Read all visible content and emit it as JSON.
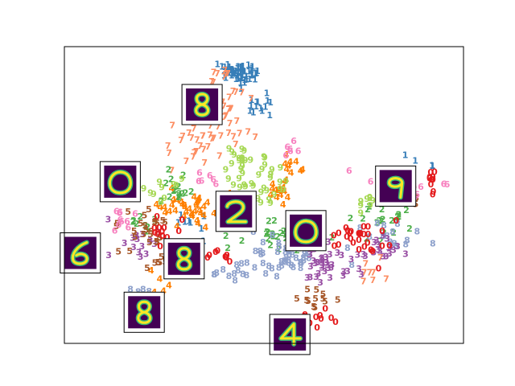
{
  "chart_data": {
    "type": "scatter",
    "title": "",
    "xlabel": "",
    "ylabel": "",
    "xlim": [
      0,
      100
    ],
    "ylim": [
      0,
      100
    ],
    "grid": false,
    "legend": "none",
    "ticks": "none",
    "marker": "digit class label drawn as text",
    "class_colors": {
      "0": "#e41a1c",
      "1": "#377eb8",
      "2": "#4daf4a",
      "3": "#984ea3",
      "4": "#ff7f00",
      "5": "#a65628",
      "6": "#f781bf",
      "7": "#fc8d62",
      "8": "#8da0cb",
      "9": "#a6d854"
    },
    "clusters": [
      {
        "label": "1",
        "count": 60,
        "center": [
          43,
          91
        ],
        "spread": [
          4,
          3
        ]
      },
      {
        "label": "1",
        "count": 14,
        "center": [
          49,
          80
        ],
        "spread": [
          3,
          4
        ]
      },
      {
        "label": "1",
        "count": 8,
        "center": [
          32,
          41
        ],
        "spread": [
          5,
          3
        ]
      },
      {
        "label": "1",
        "count": 6,
        "center": [
          89,
          60
        ],
        "spread": [
          3,
          4
        ]
      },
      {
        "label": "7",
        "count": 35,
        "center": [
          39,
          76
        ],
        "spread": [
          5,
          8
        ]
      },
      {
        "label": "7",
        "count": 22,
        "center": [
          32,
          66
        ],
        "spread": [
          6,
          7
        ]
      },
      {
        "label": "7",
        "count": 10,
        "center": [
          40,
          88
        ],
        "spread": [
          6,
          4
        ]
      },
      {
        "label": "7",
        "count": 8,
        "center": [
          77,
          24
        ],
        "spread": [
          4,
          5
        ]
      },
      {
        "label": "4",
        "count": 40,
        "center": [
          32,
          46
        ],
        "spread": [
          8,
          4
        ]
      },
      {
        "label": "4",
        "count": 15,
        "center": [
          54,
          51
        ],
        "spread": [
          3,
          4
        ]
      },
      {
        "label": "4",
        "count": 10,
        "center": [
          58,
          59
        ],
        "spread": [
          3,
          3
        ]
      },
      {
        "label": "4",
        "count": 6,
        "center": [
          24,
          22
        ],
        "spread": [
          3,
          4
        ]
      },
      {
        "label": "2",
        "count": 35,
        "center": [
          55,
          38
        ],
        "spread": [
          8,
          7
        ]
      },
      {
        "label": "2",
        "count": 20,
        "center": [
          79,
          42
        ],
        "spread": [
          6,
          5
        ]
      },
      {
        "label": "2",
        "count": 15,
        "center": [
          27,
          52
        ],
        "spread": [
          5,
          4
        ]
      },
      {
        "label": "2",
        "count": 8,
        "center": [
          20,
          40
        ],
        "spread": [
          3,
          4
        ]
      },
      {
        "label": "9",
        "count": 35,
        "center": [
          49,
          53
        ],
        "spread": [
          5,
          7
        ]
      },
      {
        "label": "9",
        "count": 15,
        "center": [
          44,
          62
        ],
        "spread": [
          4,
          3
        ]
      },
      {
        "label": "9",
        "count": 10,
        "center": [
          25,
          52
        ],
        "spread": [
          4,
          4
        ]
      },
      {
        "label": "9",
        "count": 8,
        "center": [
          76,
          46
        ],
        "spread": [
          4,
          4
        ]
      },
      {
        "label": "8",
        "count": 50,
        "center": [
          56,
          28
        ],
        "spread": [
          9,
          5
        ]
      },
      {
        "label": "8",
        "count": 15,
        "center": [
          85,
          36
        ],
        "spread": [
          6,
          4
        ]
      },
      {
        "label": "8",
        "count": 10,
        "center": [
          42,
          24
        ],
        "spread": [
          4,
          3
        ]
      },
      {
        "label": "8",
        "count": 8,
        "center": [
          18,
          16
        ],
        "spread": [
          3,
          4
        ]
      },
      {
        "label": "3",
        "count": 40,
        "center": [
          65,
          27
        ],
        "spread": [
          7,
          5
        ]
      },
      {
        "label": "3",
        "count": 18,
        "center": [
          80,
          32
        ],
        "spread": [
          5,
          4
        ]
      },
      {
        "label": "3",
        "count": 15,
        "center": [
          18,
          34
        ],
        "spread": [
          5,
          4
        ]
      },
      {
        "label": "5",
        "count": 25,
        "center": [
          20,
          37
        ],
        "spread": [
          6,
          5
        ]
      },
      {
        "label": "5",
        "count": 12,
        "center": [
          64,
          15
        ],
        "spread": [
          5,
          3
        ]
      },
      {
        "label": "5",
        "count": 10,
        "center": [
          86,
          50
        ],
        "spread": [
          5,
          4
        ]
      },
      {
        "label": "5",
        "count": 8,
        "center": [
          24,
          27
        ],
        "spread": [
          4,
          4
        ]
      },
      {
        "label": "6",
        "count": 25,
        "center": [
          84,
          53
        ],
        "spread": [
          8,
          4
        ]
      },
      {
        "label": "6",
        "count": 10,
        "center": [
          14,
          43
        ],
        "spread": [
          5,
          4
        ]
      },
      {
        "label": "6",
        "count": 6,
        "center": [
          57,
          66
        ],
        "spread": [
          2,
          2
        ]
      },
      {
        "label": "6",
        "count": 6,
        "center": [
          34,
          55
        ],
        "spread": [
          4,
          3
        ]
      },
      {
        "label": "0",
        "count": 30,
        "center": [
          76,
          35
        ],
        "spread": [
          8,
          8
        ]
      },
      {
        "label": "0",
        "count": 12,
        "center": [
          26,
          37
        ],
        "spread": [
          5,
          4
        ]
      },
      {
        "label": "0",
        "count": 10,
        "center": [
          64,
          9
        ],
        "spread": [
          4,
          3
        ]
      },
      {
        "label": "0",
        "count": 10,
        "center": [
          92,
          55
        ],
        "spread": [
          3,
          4
        ]
      },
      {
        "label": "0",
        "count": 8,
        "center": [
          40,
          30
        ],
        "spread": [
          4,
          2
        ]
      }
    ],
    "thumbnails": [
      {
        "digit": "8",
        "x": 34.5,
        "y": 80.5
      },
      {
        "digit": "0",
        "x": 14.0,
        "y": 54.5
      },
      {
        "digit": "9",
        "x": 83.0,
        "y": 53.0
      },
      {
        "digit": "2",
        "x": 43.0,
        "y": 44.5
      },
      {
        "digit": "0",
        "x": 60.5,
        "y": 38.0
      },
      {
        "digit": "6",
        "x": 4.0,
        "y": 30.5
      },
      {
        "digit": "8",
        "x": 30.0,
        "y": 28.5
      },
      {
        "digit": "8",
        "x": 20.0,
        "y": 10.5
      },
      {
        "digit": "4",
        "x": 56.5,
        "y": 3.0
      }
    ]
  }
}
